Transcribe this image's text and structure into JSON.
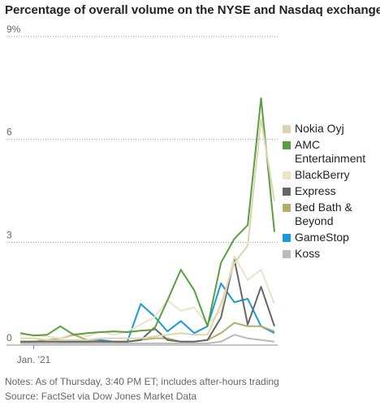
{
  "chart_data": {
    "type": "line",
    "title": "Percentage of overall volume on the NYSE and Nasdaq exchanges",
    "notes": "Notes: As of Thursday, 3:40 PM ET; includes after-hours trading",
    "source": "Source: FactSet via Dow Jones Market Data",
    "categories": [
      null,
      "Jan. '21",
      null,
      null,
      null,
      null,
      null,
      null,
      null,
      null,
      null,
      null,
      null,
      null,
      null,
      null,
      null,
      null,
      null,
      null
    ],
    "ylim": [
      0,
      9
    ],
    "yticks": [
      0,
      3,
      6,
      {
        "value": 9,
        "label": "9%"
      }
    ],
    "grid": true,
    "legend": "right",
    "series": [
      {
        "name": "Nokia Oyj",
        "color": "#dcd6b0",
        "values": [
          0.2,
          0.2,
          0.15,
          0.15,
          0.15,
          0.15,
          0.2,
          0.2,
          0.2,
          0.2,
          0.25,
          0.3,
          0.35,
          0.3,
          0.3,
          1.2,
          2.4,
          2.9,
          6.6,
          4.2
        ]
      },
      {
        "name": "AMC Entertainment",
        "color": "#5a9e3f",
        "values": [
          0.35,
          0.28,
          0.3,
          0.55,
          0.3,
          0.35,
          0.38,
          0.4,
          0.38,
          0.42,
          0.45,
          1.3,
          2.2,
          1.6,
          0.55,
          2.4,
          3.1,
          3.5,
          7.2,
          3.3
        ]
      },
      {
        "name": "BlackBerry",
        "color": "#ece4c8",
        "values": [
          0.3,
          0.3,
          0.25,
          0.2,
          0.35,
          0.25,
          0.4,
          0.3,
          0.4,
          0.6,
          0.8,
          1.3,
          1.0,
          1.1,
          0.6,
          1.0,
          2.6,
          1.9,
          2.2,
          1.2
        ]
      },
      {
        "name": "Express",
        "color": "#666666",
        "values": [
          0.1,
          0.1,
          0.1,
          0.1,
          0.1,
          0.1,
          0.1,
          0.1,
          0.1,
          0.15,
          0.5,
          0.15,
          0.1,
          0.1,
          0.15,
          0.8,
          2.5,
          0.6,
          1.7,
          0.55
        ]
      },
      {
        "name": "Bed Bath & Beyond",
        "color": "#b5ad6b",
        "values": [
          0.1,
          0.1,
          0.15,
          0.2,
          0.3,
          0.15,
          0.1,
          0.1,
          0.1,
          0.15,
          0.2,
          0.2,
          0.1,
          0.1,
          0.15,
          0.35,
          0.65,
          0.55,
          0.55,
          0.4
        ]
      },
      {
        "name": "GameStop",
        "color": "#1a9ad6",
        "values": [
          0.1,
          0.1,
          0.15,
          0.1,
          0.1,
          0.1,
          0.15,
          0.1,
          0.1,
          1.2,
          0.85,
          0.4,
          0.7,
          0.35,
          0.55,
          1.8,
          1.25,
          1.35,
          0.55,
          0.35
        ]
      },
      {
        "name": "Koss",
        "color": "#bbbbbb",
        "values": [
          0.05,
          0.05,
          0.05,
          0.05,
          0.05,
          0.05,
          0.05,
          0.05,
          0.05,
          0.05,
          0.05,
          0.05,
          0.05,
          0.05,
          0.05,
          0.1,
          0.3,
          0.2,
          0.15,
          0.1
        ]
      }
    ]
  }
}
